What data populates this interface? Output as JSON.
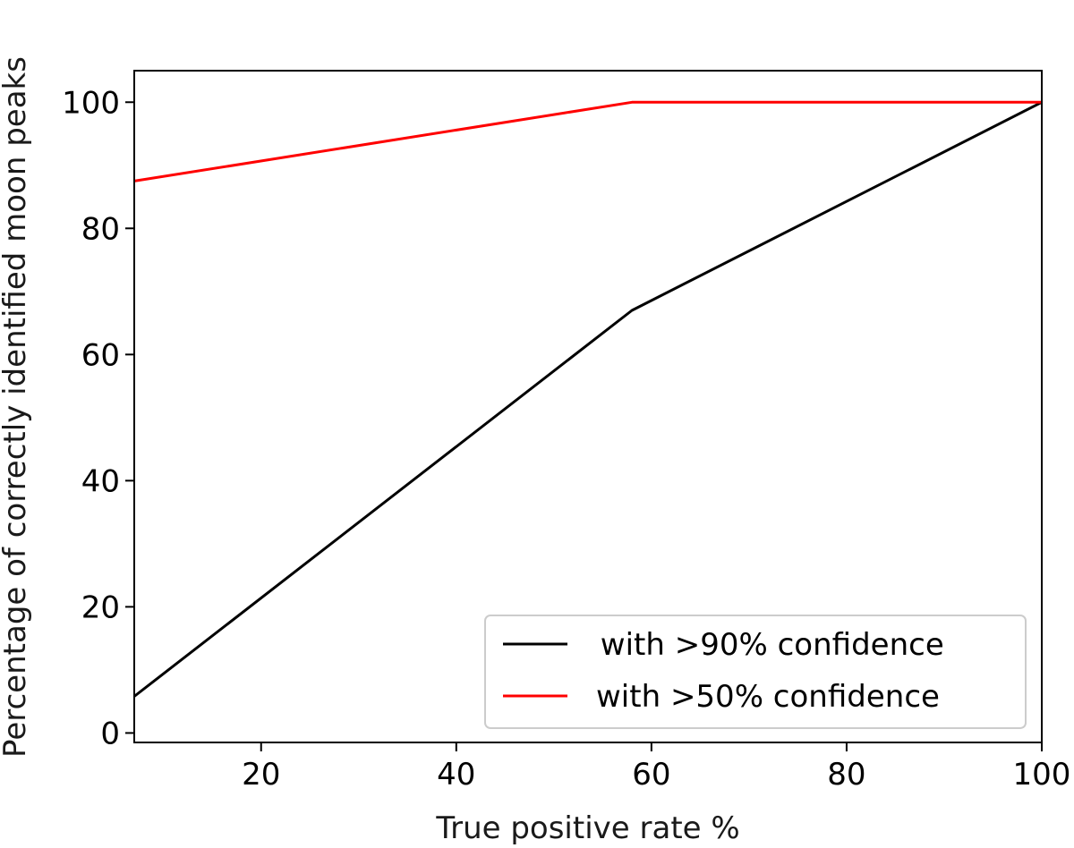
{
  "chart_data": {
    "type": "line",
    "title": "",
    "xlabel": "True positive rate %",
    "ylabel": "Percentage of correctly identified moon peaks",
    "xlim": [
      7,
      100
    ],
    "ylim": [
      -1.5,
      105
    ],
    "xticks": [
      20,
      40,
      60,
      80,
      100
    ],
    "yticks": [
      0,
      20,
      40,
      60,
      80,
      100
    ],
    "grid": false,
    "legend_position": "lower-right",
    "series": [
      {
        "name": " with >90% confidence",
        "color": "#000000",
        "x": [
          7,
          58,
          100
        ],
        "y": [
          5.8,
          67,
          100
        ]
      },
      {
        "name": "with >50% confidence",
        "color": "#ff0000",
        "x": [
          7,
          58,
          100
        ],
        "y": [
          87.5,
          100,
          100
        ]
      }
    ]
  }
}
